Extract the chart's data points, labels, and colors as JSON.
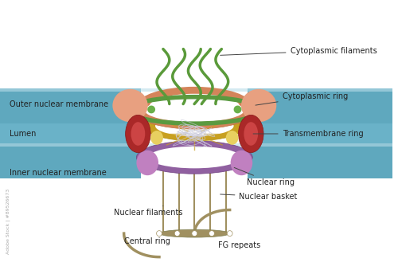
{
  "bg_color": "#ffffff",
  "membrane_color": "#5ba3b8",
  "membrane_light": "#a8d4e0",
  "outer_ring_color": "#d4845a",
  "cytoplasmic_ring_color": "#6aaa5a",
  "spoke_ring_color": "#c8a020",
  "transmembrane_color": "#8b1a1a",
  "nuclear_ring_color": "#8b5a8b",
  "nuclear_basket_color": "#a09060",
  "filament_color": "#4a8a3a",
  "cytoplasmic_lobe_color": "#e8a080",
  "inner_lobe_color": "#cc7050",
  "lumen_color": "#7ab8cc",
  "inner_membrane_color": "#6090a0",
  "nuclear_lobe_color": "#c070c0",
  "fg_color": "#b0a070",
  "small_dot_color": "#6aaa5a",
  "yellow_dot_color": "#e8d060",
  "dark_red_color": "#aa2020",
  "central_transport_color": "#ccccdd",
  "labels": {
    "cytoplasmic_filaments": "Cytoplasmic filaments",
    "cytoplasmic_ring": "Cytoplasmic ring",
    "outer_nuclear_membrane": "Outer nuclear membrane",
    "lumen": "Lumen",
    "transmembrane_ring": "Transmembrane ring",
    "inner_nuclear_membrane": "Inner nuclear membrane",
    "nuclear_ring": "Nuclear ring",
    "nuclear_basket": "Nuclear basket",
    "nuclear_filaments": "Nuclear filaments",
    "central_ring": "Central ring",
    "fg_repeats": "FG repeats"
  },
  "label_fontsize": 7,
  "watermark": "Adobe Stock | #89526673"
}
